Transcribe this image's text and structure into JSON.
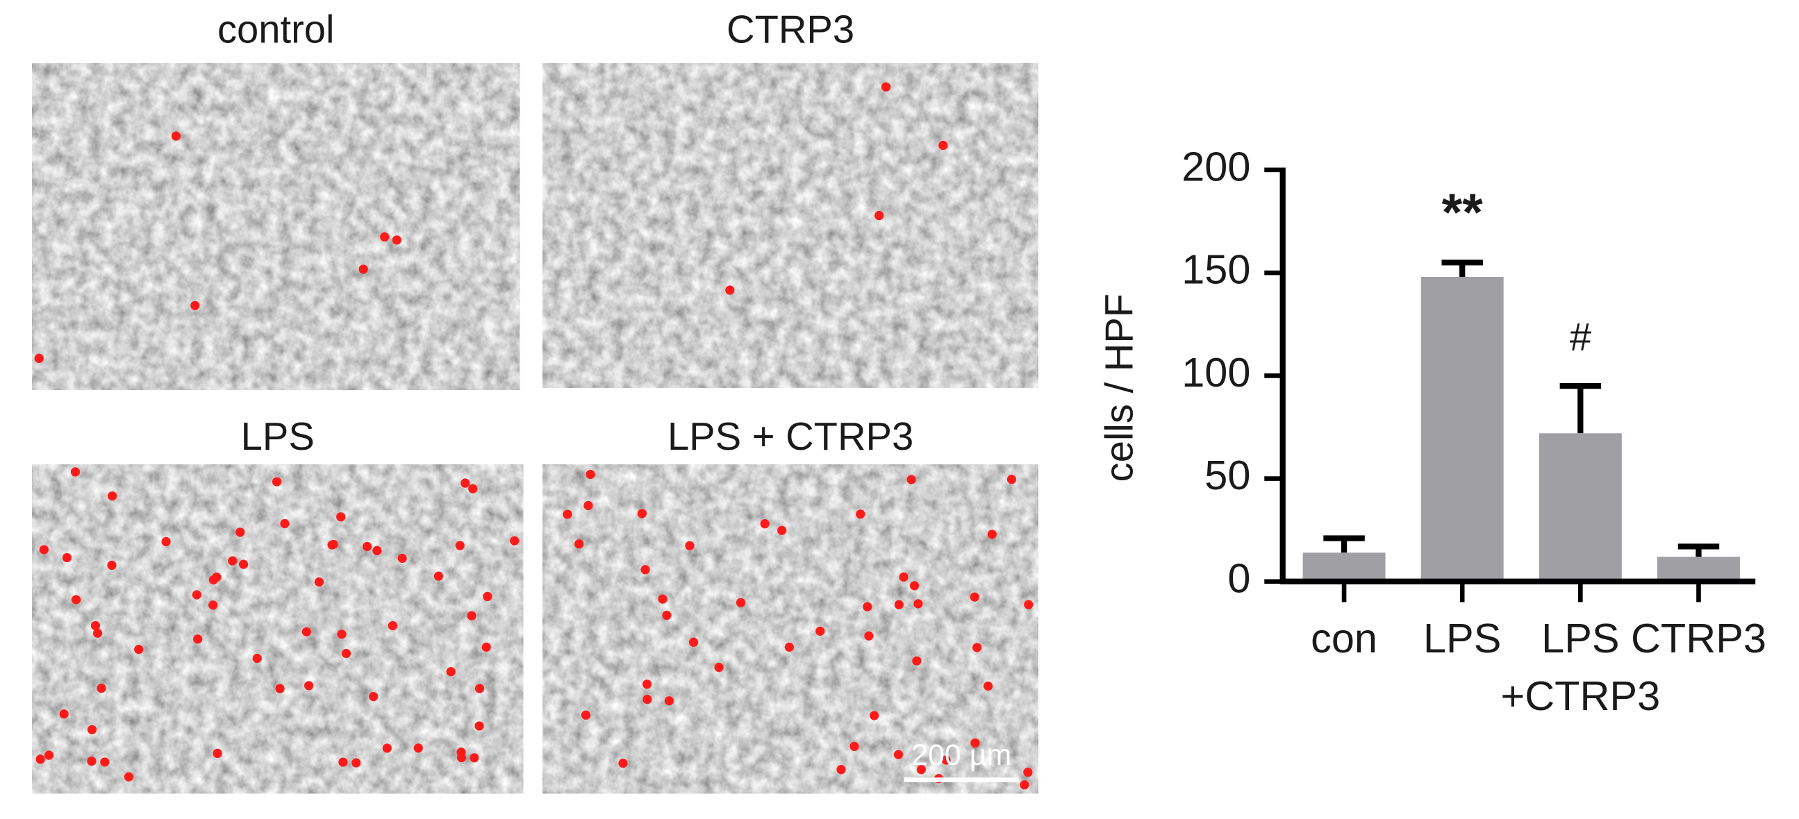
{
  "panels": [
    {
      "label": "control"
    },
    {
      "label": "CTRP3"
    },
    {
      "label": "LPS"
    },
    {
      "label": "LPS + CTRP3"
    }
  ],
  "scale_bar": "200 µm",
  "chart_data": {
    "type": "bar",
    "ylabel": "cells / HPF",
    "categories": [
      "con",
      "LPS",
      "LPS\n+CTRP3",
      "CTRP3"
    ],
    "series": [
      {
        "color": "#a09fa4",
        "values": [
          14,
          148,
          72,
          12
        ],
        "errors": [
          7,
          7,
          23,
          5
        ]
      }
    ],
    "ylim": [
      0,
      200
    ],
    "yticks": [
      0,
      50,
      100,
      150,
      200
    ],
    "annotations": [
      {
        "text": "**",
        "category": "LPS"
      },
      {
        "text": "#",
        "category": "LPS\n+CTRP3"
      }
    ]
  }
}
